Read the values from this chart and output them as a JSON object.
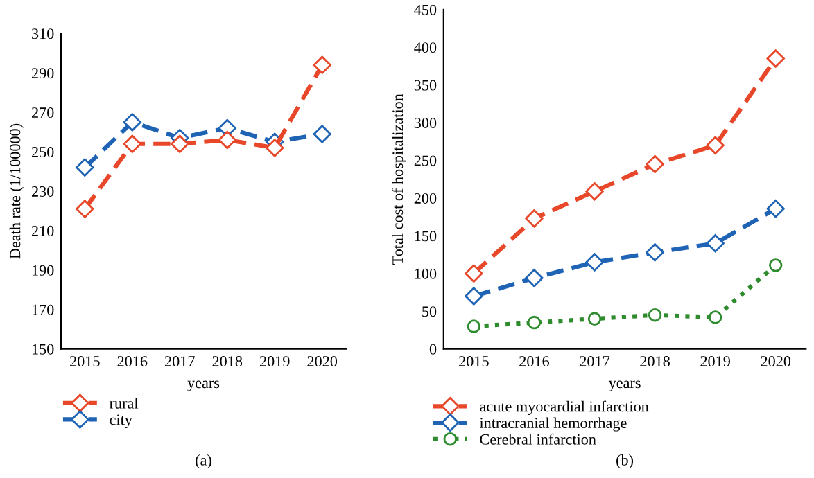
{
  "chart_data": [
    {
      "type": "line",
      "xlabel": "years",
      "ylabel": "Death rate (1/100000)",
      "categories": [
        "2015",
        "2016",
        "2017",
        "2018",
        "2019",
        "2020"
      ],
      "ylim": [
        150,
        310
      ],
      "yticks": [
        150,
        170,
        190,
        210,
        230,
        250,
        270,
        290,
        310
      ],
      "grid": false,
      "legend": "bottom left",
      "marker": "diamond",
      "annotations": [
        "(a)"
      ],
      "series": [
        {
          "name": "rural",
          "color": "#e8472a",
          "line_style": "dashed",
          "values": [
            221,
            254,
            254,
            256,
            252,
            294
          ]
        },
        {
          "name": "city",
          "color": "#1f63b5",
          "line_style": "dashed",
          "values": [
            242,
            265,
            257,
            262,
            255,
            259
          ]
        }
      ]
    },
    {
      "type": "line",
      "xlabel": "years",
      "ylabel": "Total cost of hospitalization",
      "categories": [
        "2015",
        "2016",
        "2017",
        "2018",
        "2019",
        "2020"
      ],
      "ylim": [
        0,
        450
      ],
      "yticks": [
        0,
        50,
        100,
        150,
        200,
        250,
        300,
        350,
        400,
        450
      ],
      "grid": false,
      "legend": "bottom left",
      "annotations": [
        "(b)"
      ],
      "series": [
        {
          "name": "acute myocardial infarction",
          "color": "#e8472a",
          "line_style": "dashed",
          "marker": "diamond",
          "values": [
            100,
            173,
            209,
            245,
            270,
            385
          ]
        },
        {
          "name": "intracranial hemorrhage",
          "color": "#1f63b5",
          "line_style": "dashed",
          "marker": "diamond",
          "values": [
            70,
            94,
            115,
            128,
            140,
            186
          ]
        },
        {
          "name": "Cerebral infarction",
          "color": "#2e8b2e",
          "line_style": "dotted",
          "marker": "circle",
          "values": [
            30,
            35,
            40,
            45,
            42,
            111
          ]
        }
      ]
    }
  ]
}
